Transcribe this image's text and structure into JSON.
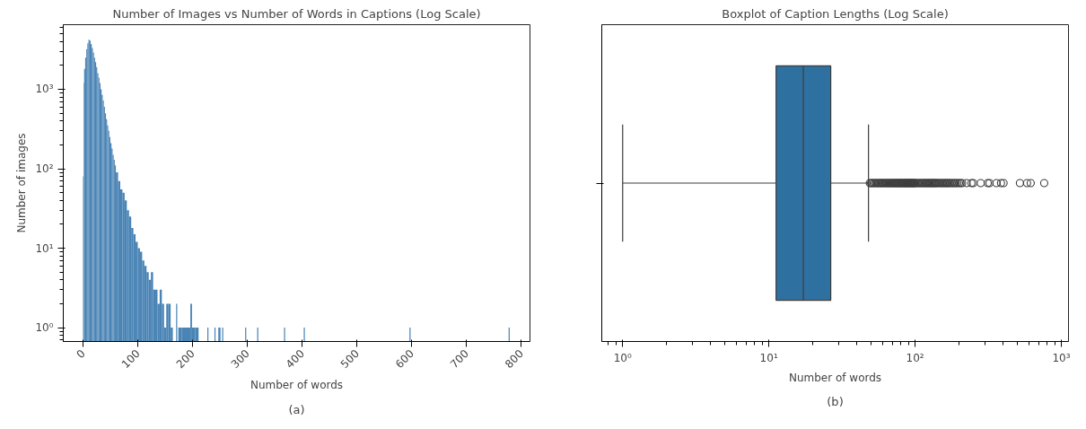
{
  "chart_data": [
    {
      "type": "histogram",
      "title": "Number of Images vs Number of Words in Captions (Log Scale)",
      "xlabel": "Number of words",
      "ylabel": "Number of images",
      "color": "#4a84b5",
      "log": "y",
      "grid": false,
      "bins": [
        0,
        1,
        2,
        4,
        6,
        8,
        10,
        12,
        14,
        16,
        18,
        20,
        22,
        24,
        26,
        28,
        30,
        32,
        34,
        36,
        38,
        40,
        42,
        44,
        46,
        48,
        50,
        52,
        54,
        56,
        58,
        60,
        64,
        68,
        72,
        76,
        80,
        84,
        88,
        92,
        96,
        100,
        104,
        108,
        112,
        116,
        120,
        124,
        128,
        132,
        136,
        140,
        144,
        148,
        152,
        156,
        160,
        164,
        170,
        172,
        174,
        180,
        186,
        196,
        199,
        205,
        211,
        227,
        229,
        240,
        242,
        247,
        251,
        254,
        256,
        296,
        298,
        318,
        320,
        367,
        369,
        403,
        405,
        596,
        598,
        777,
        779
      ],
      "values": [
        80,
        1200,
        1800,
        2500,
        3200,
        3800,
        4200,
        4100,
        3700,
        3300,
        2900,
        2500,
        2200,
        1900,
        1600,
        1400,
        1200,
        1000,
        850,
        720,
        600,
        500,
        420,
        350,
        300,
        250,
        210,
        180,
        150,
        130,
        110,
        90,
        70,
        55,
        50,
        40,
        30,
        25,
        18,
        15,
        12,
        10,
        9,
        7,
        6,
        5,
        4,
        5,
        3,
        3,
        2,
        3,
        2,
        1,
        2,
        2,
        1,
        null,
        2,
        null,
        1,
        1,
        1,
        2,
        1,
        1,
        null,
        1,
        null,
        1,
        null,
        1,
        null,
        1,
        null,
        1,
        null,
        1,
        null,
        1,
        null,
        1,
        null,
        1,
        null,
        1
      ],
      "xlim": [
        -36,
        816
      ],
      "xticks": [
        0,
        100,
        200,
        300,
        400,
        500,
        600,
        700,
        800
      ],
      "ylim": [
        0.67,
        6500
      ],
      "yticks": [
        {
          "value": 1,
          "label": "10⁰"
        },
        {
          "value": 10,
          "label": "10¹"
        },
        {
          "value": 100,
          "label": "10²"
        },
        {
          "value": 1000,
          "label": "10³"
        }
      ],
      "annotations": [
        "(a)"
      ]
    },
    {
      "type": "box",
      "orientation": "horizontal",
      "title": "Boxplot of Caption Lengths (Log Scale)",
      "xlabel": "Number of words",
      "color": "#2e70a0",
      "log": "x",
      "grid": false,
      "tick_labels": "x",
      "categories": [
        null
      ],
      "boxes": [
        {
          "low": 1,
          "q1": 11.2,
          "median": 17.2,
          "q3": 26.5,
          "high": 48,
          "outliers": [
            49,
            50,
            51,
            52,
            53,
            54,
            55,
            56,
            57,
            58,
            59,
            60,
            61,
            62,
            63,
            64,
            65,
            66,
            67,
            68,
            69,
            70,
            71,
            72,
            73,
            74,
            75,
            76,
            77,
            78,
            79,
            80,
            81,
            82,
            83,
            84,
            85,
            86,
            87,
            88,
            89,
            90,
            91,
            92,
            93,
            94,
            95,
            96,
            97,
            98,
            99,
            100,
            102,
            104,
            106,
            108,
            110,
            112,
            114,
            116,
            118,
            120,
            122,
            124,
            126,
            128,
            130,
            132,
            134,
            136,
            138,
            140,
            143,
            146,
            149,
            152,
            155,
            158,
            161,
            164,
            167,
            170,
            174,
            178,
            182,
            186,
            190,
            195,
            200,
            205,
            210,
            225,
            243,
            250,
            281,
            314,
            323,
            360,
            387,
            403,
            521,
            583,
            618,
            764
          ]
        }
      ],
      "xlim": [
        0.72,
        1120
      ],
      "xticks": [
        {
          "value": 1,
          "label": "10⁰"
        },
        {
          "value": 10,
          "label": "10¹"
        },
        {
          "value": 100,
          "label": "10²"
        },
        {
          "value": 1000,
          "label": "10³"
        }
      ],
      "annotations": [
        "(b)"
      ]
    }
  ]
}
